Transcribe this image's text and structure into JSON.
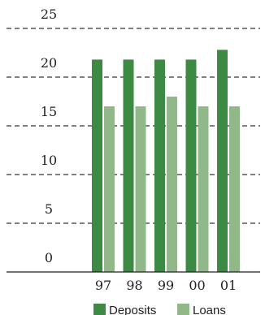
{
  "chart_data": {
    "type": "bar",
    "categories": [
      "97",
      "98",
      "99",
      "00",
      "01"
    ],
    "series": [
      {
        "name": "Deposits",
        "color": "#3d8a45",
        "values": [
          21.8,
          21.8,
          21.8,
          21.8,
          22.8
        ]
      },
      {
        "name": "Loans",
        "color": "#90b888",
        "values": [
          17.0,
          17.0,
          18.0,
          17.0,
          17.0
        ]
      }
    ],
    "title": "",
    "xlabel": "",
    "ylabel": "",
    "ylim": [
      0,
      25
    ],
    "yticks": [
      0,
      5,
      10,
      15,
      20,
      25
    ],
    "grid": "dashed horizontal",
    "legend_position": "bottom"
  }
}
